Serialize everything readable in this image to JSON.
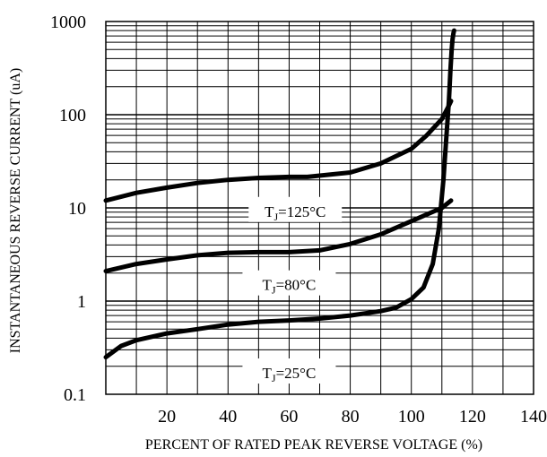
{
  "chart_data": {
    "type": "line",
    "title": "",
    "xlabel": "PERCENT OF RATED PEAK REVERSE VOLTAGE (%)",
    "ylabel": "INSTANTANEOUS REVERSE CURRENT (uA)",
    "xlim": [
      0,
      140
    ],
    "ylim": [
      0.1,
      1000
    ],
    "yscale": "log",
    "grid": true,
    "xticks": [
      20,
      40,
      60,
      80,
      100,
      120,
      140
    ],
    "yticks": [
      0.1,
      1,
      10,
      100,
      1000
    ],
    "xtick_labels": [
      "20",
      "40",
      "60",
      "80",
      "100",
      "120",
      "140"
    ],
    "ytick_labels": [
      "0.1",
      "1",
      "10",
      "100",
      "1000"
    ],
    "series": [
      {
        "name_sub": "J",
        "name_rest": "=125°C",
        "label": "TJ=125°C",
        "x": [
          0,
          10,
          20,
          30,
          40,
          50,
          60,
          66,
          80,
          90,
          100,
          105,
          110,
          112,
          113
        ],
        "y": [
          12,
          14.5,
          16.5,
          18.5,
          20,
          21,
          21.5,
          21.5,
          24,
          30,
          43,
          60,
          90,
          120,
          140
        ]
      },
      {
        "name_sub": "J",
        "name_rest": "=80°C",
        "label": "TJ=80°C",
        "x": [
          0,
          10,
          20,
          30,
          40,
          50,
          60,
          70,
          80,
          90,
          100,
          110,
          113
        ],
        "y": [
          2.1,
          2.5,
          2.8,
          3.1,
          3.3,
          3.35,
          3.35,
          3.5,
          4.1,
          5.2,
          7.2,
          10,
          12
        ]
      },
      {
        "name_sub": "J",
        "name_rest": "=25°C",
        "label": "TJ=25°C",
        "x": [
          0,
          5,
          10,
          20,
          30,
          40,
          50,
          60,
          70,
          80,
          90,
          95,
          100,
          104,
          107,
          109,
          110.5,
          111.5,
          112.3,
          112.8,
          113.2,
          113.5,
          113.8,
          114
        ],
        "y": [
          0.25,
          0.33,
          0.38,
          0.45,
          0.5,
          0.56,
          0.6,
          0.62,
          0.65,
          0.7,
          0.78,
          0.85,
          1.05,
          1.4,
          2.5,
          6,
          20,
          60,
          140,
          300,
          500,
          650,
          750,
          800
        ]
      }
    ]
  }
}
